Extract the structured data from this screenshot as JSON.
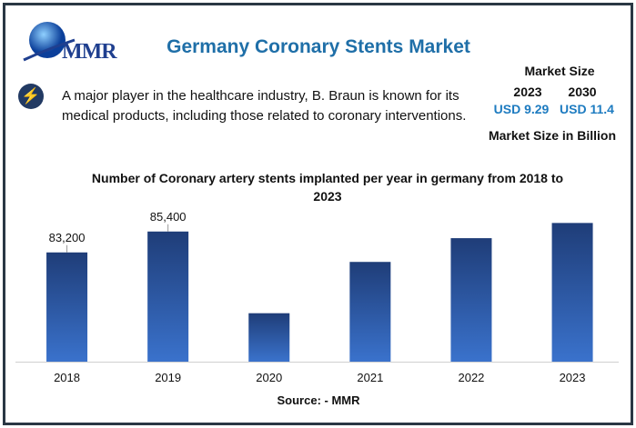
{
  "logo": {
    "text": "MMR"
  },
  "header": {
    "title": "Germany Coronary Stents Market"
  },
  "highlight": {
    "icon": "lightning-bolt-icon",
    "text": "A major player in the healthcare industry, B. Braun is known for its medical products, including those related to coronary interventions."
  },
  "market_size": {
    "label": "Market Size",
    "year_1": "2023",
    "year_2": "2030",
    "value_1": "USD 9.29",
    "value_2": "USD 11.4",
    "unit_label": "Market Size in Billion"
  },
  "colors": {
    "title": "#1f6fa8",
    "usd": "#1d7bc0",
    "bar_top": "#1f3d78",
    "bar_bottom": "#3a72cc"
  },
  "chart_data": {
    "type": "bar",
    "title": "Number of Coronary artery stents implanted per year in germany from 2018 to 2023",
    "categories": [
      "2018",
      "2019",
      "2020",
      "2021",
      "2022",
      "2023"
    ],
    "values": [
      83200,
      85400,
      76800,
      82200,
      84700,
      86300
    ],
    "data_labels": [
      "83,200",
      "85,400",
      "",
      "",
      "",
      ""
    ],
    "xlabel": "",
    "ylabel": "",
    "ylim": [
      71700,
      87770
    ],
    "grid": false,
    "source": "Source: - MMR"
  }
}
